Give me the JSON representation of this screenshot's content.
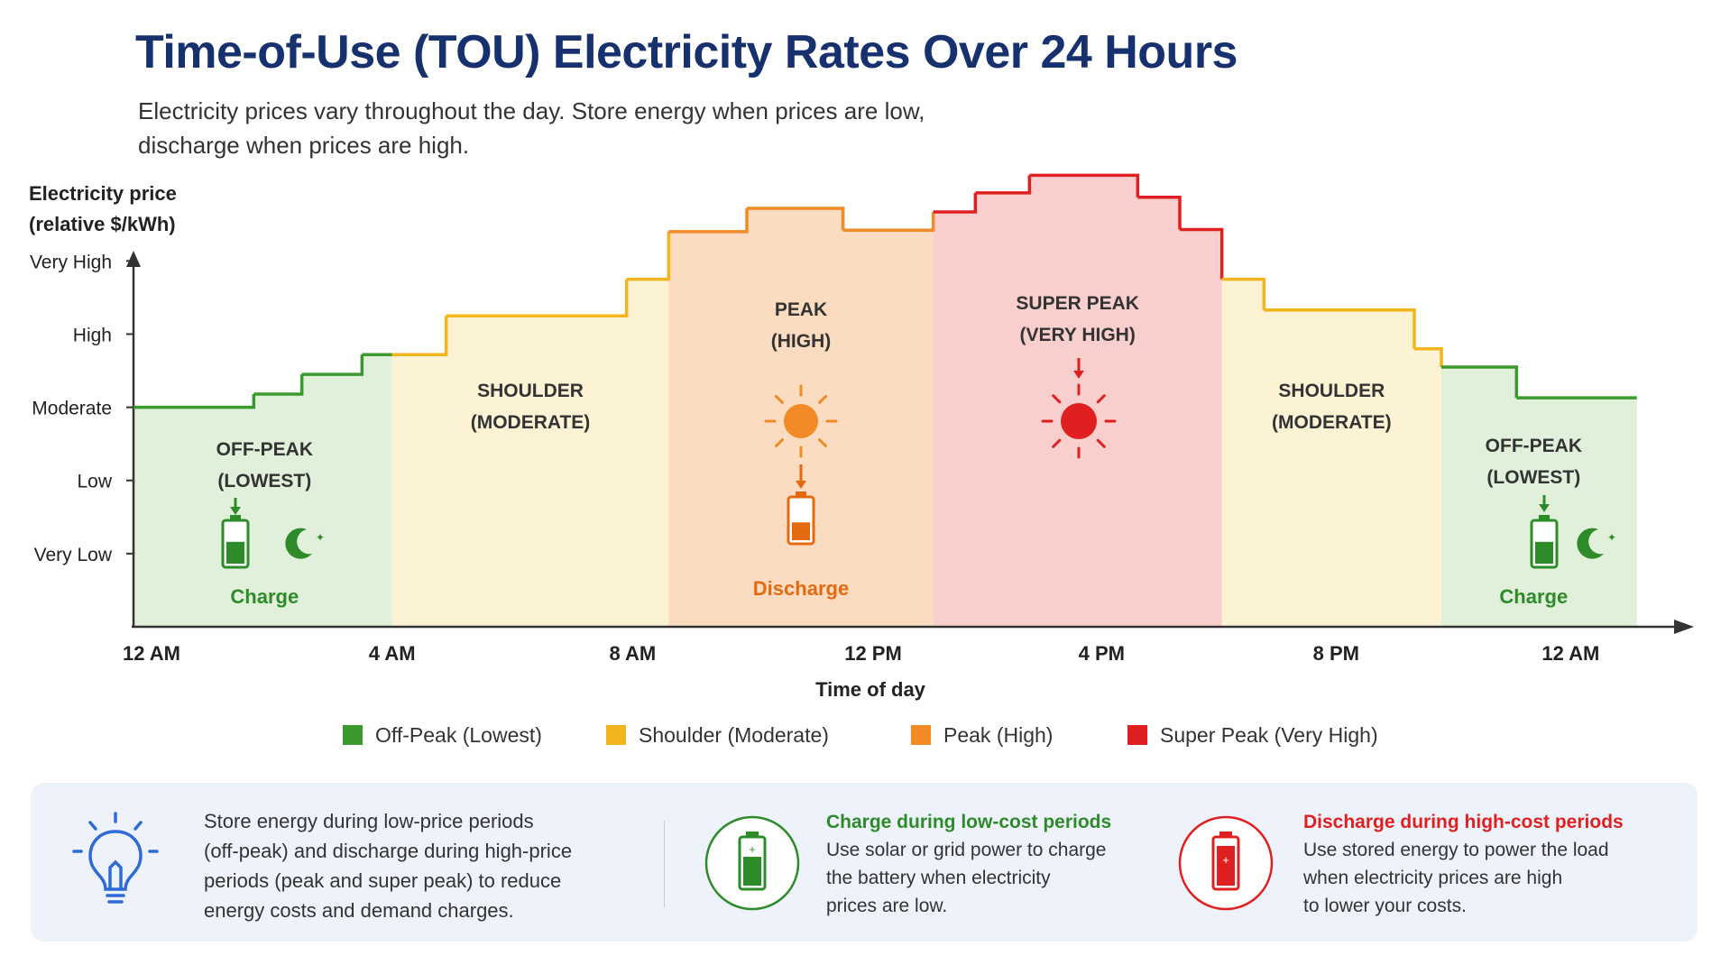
{
  "header": {
    "title": "Time-of-Use (TOU) Electricity Rates Over 24 Hours",
    "subtitle_line1": "Electricity prices vary throughout the day. Store energy when prices are low,",
    "subtitle_line2": "discharge when prices are high."
  },
  "chart_data": {
    "type": "line",
    "step": true,
    "ylabel_line1": "Electricity price",
    "ylabel_line2": "(relative $/kWh)",
    "xlabel": "Time of day",
    "x_unit": "hours",
    "xlim": [
      0,
      25.5
    ],
    "ylim": [
      0,
      6.2
    ],
    "x_tick_labels": [
      "12 AM",
      "4 AM",
      "8 AM",
      "12 PM",
      "4 PM",
      "8 PM",
      "12 AM"
    ],
    "x_tick_values": [
      0.3,
      4.3,
      8.3,
      12.3,
      16.1,
      20.0,
      23.9
    ],
    "y_tick_labels": [
      "Very Low",
      "Low",
      "Moderate",
      "High",
      "Very High"
    ],
    "y_tick_values": [
      1.0,
      2.0,
      3.0,
      4.0,
      5.0
    ],
    "series": [
      {
        "segments": [
          {
            "x0": 0.0,
            "x1": 2.0,
            "y": 3.0,
            "period": "off_peak"
          },
          {
            "x0": 2.0,
            "x1": 2.8,
            "y": 3.18,
            "period": "off_peak"
          },
          {
            "x0": 2.8,
            "x1": 3.8,
            "y": 3.45,
            "period": "off_peak"
          },
          {
            "x0": 3.8,
            "x1": 4.3,
            "y": 3.72,
            "period": "off_peak"
          },
          {
            "x0": 4.3,
            "x1": 5.2,
            "y": 3.72,
            "period": "shoulder"
          },
          {
            "x0": 5.2,
            "x1": 8.2,
            "y": 4.25,
            "period": "shoulder"
          },
          {
            "x0": 8.2,
            "x1": 8.9,
            "y": 4.75,
            "period": "shoulder"
          },
          {
            "x0": 8.9,
            "x1": 10.2,
            "y": 5.4,
            "period": "peak"
          },
          {
            "x0": 10.2,
            "x1": 11.8,
            "y": 5.72,
            "period": "peak"
          },
          {
            "x0": 11.8,
            "x1": 13.3,
            "y": 5.42,
            "period": "peak"
          },
          {
            "x0": 13.3,
            "x1": 14.0,
            "y": 5.67,
            "period": "super_peak"
          },
          {
            "x0": 14.0,
            "x1": 14.9,
            "y": 5.93,
            "period": "super_peak"
          },
          {
            "x0": 14.9,
            "x1": 16.7,
            "y": 6.17,
            "period": "super_peak"
          },
          {
            "x0": 16.7,
            "x1": 17.4,
            "y": 5.87,
            "period": "super_peak"
          },
          {
            "x0": 17.4,
            "x1": 18.1,
            "y": 5.43,
            "period": "super_peak"
          },
          {
            "x0": 18.1,
            "x1": 18.8,
            "y": 4.75,
            "period": "shoulder"
          },
          {
            "x0": 18.8,
            "x1": 21.3,
            "y": 4.33,
            "period": "shoulder"
          },
          {
            "x0": 21.3,
            "x1": 21.75,
            "y": 3.8,
            "period": "shoulder"
          },
          {
            "x0": 21.75,
            "x1": 23.0,
            "y": 3.55,
            "period": "off_peak"
          },
          {
            "x0": 23.0,
            "x1": 25.0,
            "y": 3.13,
            "period": "off_peak"
          }
        ]
      }
    ],
    "bands": [
      {
        "x0": 0.0,
        "x1": 4.3,
        "period": "off_peak",
        "label_line1": "OFF-PEAK",
        "label_line2": "(LOWEST)",
        "action": "Charge"
      },
      {
        "x0": 4.3,
        "x1": 8.9,
        "period": "shoulder",
        "label_line1": "SHOULDER",
        "label_line2": "(MODERATE)",
        "action": ""
      },
      {
        "x0": 8.9,
        "x1": 13.3,
        "period": "peak",
        "label_line1": "PEAK",
        "label_line2": "(HIGH)",
        "action": "Discharge"
      },
      {
        "x0": 13.3,
        "x1": 18.1,
        "period": "super_peak",
        "label_line1": "SUPER PEAK",
        "label_line2": "(VERY HIGH)",
        "action": ""
      },
      {
        "x0": 18.1,
        "x1": 21.75,
        "period": "shoulder",
        "label_line1": "SHOULDER",
        "label_line2": "(MODERATE)",
        "action": ""
      },
      {
        "x0": 21.75,
        "x1": 25.0,
        "period": "off_peak",
        "label_line1": "OFF-PEAK",
        "label_line2": "(LOWEST)",
        "action": "Charge"
      }
    ],
    "legend": [
      {
        "key": "off_peak",
        "label": "Off-Peak (Lowest)"
      },
      {
        "key": "shoulder",
        "label": "Shoulder (Moderate)"
      },
      {
        "key": "peak",
        "label": "Peak (High)"
      },
      {
        "key": "super_peak",
        "label": "Super Peak (Very High)"
      }
    ],
    "colors": {
      "off_peak": "#3a9a2e",
      "off_peak_fill": "#e1f0da",
      "shoulder": "#f2b51d",
      "shoulder_fill": "#fcf2d4",
      "peak": "#f28a26",
      "peak_fill": "#fbdcc0",
      "super_peak": "#e02020",
      "super_peak_fill": "#f8cfcc"
    },
    "legend_position": "bottom"
  },
  "tips": {
    "main_line1": "Store energy during low-price periods",
    "main_line2": "(off-peak) and discharge during high-price",
    "main_line3": "periods (peak and super peak) to reduce",
    "main_line4": "energy costs and demand charges.",
    "charge_title": "Charge during low-cost periods",
    "charge_line1": "Use solar or grid power to charge",
    "charge_line2": "the battery when electricity",
    "charge_line3": "prices are low.",
    "discharge_title": "Discharge during high-cost periods",
    "discharge_line1": "Use stored energy to power the load",
    "discharge_line2": "when electricity prices are high",
    "discharge_line3": "to lower your costs."
  },
  "icons": {
    "tip": "lightbulb-icon",
    "charge": "battery-charge-icon",
    "discharge": "battery-discharge-icon",
    "night": "moon-icon",
    "sun": "sun-icon"
  },
  "theme": {
    "title_color": "#17316f",
    "tip_blue": "#2f6bd6",
    "charge_green": "#2e8b2a",
    "discharge_red": "#e02020"
  }
}
